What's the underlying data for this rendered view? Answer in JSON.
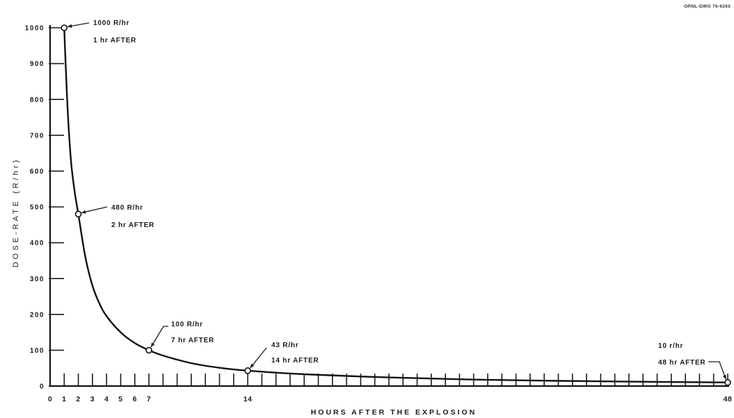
{
  "drawing_number": "ORNL-DWG 76-6265",
  "chart_data": {
    "type": "line",
    "xlabel": "HOURS AFTER THE EXPLOSION",
    "ylabel": "DOSE-RATE (R/hr)",
    "xlim": [
      0,
      48
    ],
    "ylim": [
      0,
      1000
    ],
    "x_tick_step": 1,
    "x_tick_labels": [
      {
        "x": 0,
        "label": "0"
      },
      {
        "x": 1,
        "label": "1"
      },
      {
        "x": 2,
        "label": "2"
      },
      {
        "x": 3,
        "label": "3"
      },
      {
        "x": 4,
        "label": "4"
      },
      {
        "x": 5,
        "label": "5"
      },
      {
        "x": 6,
        "label": "6"
      },
      {
        "x": 7,
        "label": "7"
      },
      {
        "x": 14,
        "label": "14"
      },
      {
        "x": 48,
        "label": "48"
      }
    ],
    "y_ticks": [
      {
        "y": 0,
        "label": "0"
      },
      {
        "y": 100,
        "label": "100"
      },
      {
        "y": 200,
        "label": "200"
      },
      {
        "y": 300,
        "label": "300"
      },
      {
        "y": 400,
        "label": "400"
      },
      {
        "y": 500,
        "label": "500"
      },
      {
        "y": 600,
        "label": "600"
      },
      {
        "y": 700,
        "label": "700"
      },
      {
        "y": 800,
        "label": "800"
      },
      {
        "y": 900,
        "label": "900"
      },
      {
        "y": 1000,
        "label": "1000"
      }
    ],
    "grid": false,
    "legend": "none",
    "series": [
      {
        "x": [
          1,
          1.1,
          1.2,
          1.3,
          1.5,
          1.75,
          2,
          2.5,
          3,
          3.5,
          4,
          5,
          6,
          7,
          8,
          10,
          12,
          14,
          18,
          24,
          30,
          36,
          42,
          48
        ],
        "y": [
          1000,
          900,
          810,
          730,
          620,
          540,
          480,
          360,
          280,
          230,
          195,
          150,
          120,
          100,
          85,
          64,
          51,
          43,
          33,
          24,
          18,
          14.5,
          12,
          10
        ]
      }
    ],
    "annotations": [
      {
        "x": 1,
        "y": 1000,
        "lines": [
          "1000 R/hr",
          "1 hr AFTER"
        ]
      },
      {
        "x": 2,
        "y": 480,
        "lines": [
          "480 R/hr",
          "2 hr AFTER"
        ]
      },
      {
        "x": 7,
        "y": 100,
        "lines": [
          "100 R/hr",
          "7 hr AFTER"
        ]
      },
      {
        "x": 14,
        "y": 43,
        "lines": [
          "43 R/hr",
          "14 hr AFTER"
        ]
      },
      {
        "x": 48,
        "y": 10,
        "lines": [
          "10 r/hr",
          "48 hr AFTER"
        ]
      }
    ]
  }
}
